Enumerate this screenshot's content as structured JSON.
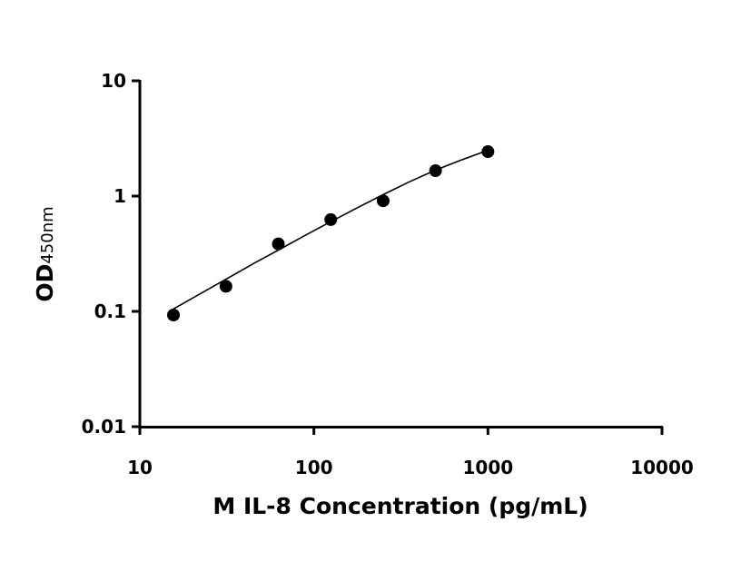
{
  "chart_data": {
    "type": "scatter",
    "title": "",
    "xlabel": "M IL-8 Concentration (pg/mL)",
    "ylabel_main": "OD",
    "ylabel_sub": "450nm",
    "x_scale": "log",
    "y_scale": "log",
    "xlim": [
      10,
      10000
    ],
    "ylim": [
      0.01,
      10
    ],
    "x_ticks": [
      10,
      100,
      1000,
      10000
    ],
    "x_tick_labels": [
      "10",
      "100",
      "1000",
      "10000"
    ],
    "y_ticks": [
      0.01,
      0.1,
      1,
      10
    ],
    "y_tick_labels": [
      "0.01",
      "0.1",
      "1",
      "10"
    ],
    "grid": false,
    "legend": "none",
    "series": [
      {
        "x": [
          15.6,
          31.25,
          62.5,
          125,
          250,
          500,
          1000
        ],
        "y": [
          0.093,
          0.165,
          0.385,
          0.625,
          0.91,
          1.66,
          2.43
        ]
      }
    ],
    "fit_curve": {
      "x": [
        15.6,
        20,
        31.25,
        45,
        62.5,
        90,
        125,
        180,
        250,
        350,
        500,
        700,
        1000
      ],
      "y": [
        0.105,
        0.13,
        0.19,
        0.26,
        0.34,
        0.46,
        0.6,
        0.8,
        1.03,
        1.32,
        1.68,
        2.05,
        2.5
      ]
    },
    "marker_color": "#000000"
  }
}
